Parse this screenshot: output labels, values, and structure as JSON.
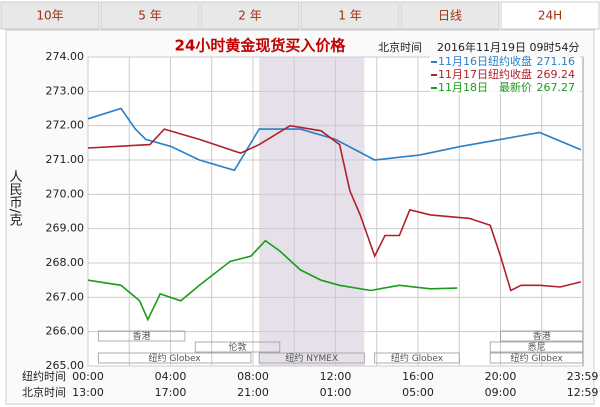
{
  "chart_data": {
    "type": "line",
    "tabs": [
      "10年",
      "5 年",
      "2 年",
      "1 年",
      "日线",
      "24H"
    ],
    "active_tab": 5,
    "title": "24小时黄金现货买入价格",
    "time_zone_label": "北京时间",
    "timestamp": "2016年11月19日 09时54分",
    "y_label": "人民币/克",
    "x_row_labels": [
      "纽约时间",
      "北京时间"
    ],
    "xlim": [
      0,
      24
    ],
    "xticks": [
      {
        "value": 0,
        "label": "00:00"
      },
      {
        "value": 4,
        "label": "04:00"
      },
      {
        "value": 8,
        "label": "08:00"
      },
      {
        "value": 12,
        "label": "12:00"
      },
      {
        "value": 16,
        "label": "16:00"
      },
      {
        "value": 20,
        "label": "20:00"
      },
      {
        "value": 23.98,
        "label": "23:59"
      }
    ],
    "x2_tick_labels": [
      "13:00",
      "17:00",
      "21:00",
      "01:00",
      "05:00",
      "09:00",
      "12:59"
    ],
    "x_minor_grid": [
      2,
      6,
      10,
      14,
      18,
      22
    ],
    "ylim": [
      265,
      274
    ],
    "yticks": [
      {
        "value": 265,
        "label": "265.00"
      },
      {
        "value": 266,
        "label": "266.00"
      },
      {
        "value": 267,
        "label": "267.00"
      },
      {
        "value": 268,
        "label": "268.00"
      },
      {
        "value": 269,
        "label": "269.00"
      },
      {
        "value": 270,
        "label": "270.00"
      },
      {
        "value": 271,
        "label": "271.00"
      },
      {
        "value": 272,
        "label": "272.00"
      },
      {
        "value": 273,
        "label": "273.00"
      },
      {
        "value": 274,
        "label": "274.00"
      }
    ],
    "grid": true,
    "markets": [
      {
        "label": "香港",
        "start": 0.5,
        "end": 4.7
      },
      {
        "label": "伦敦",
        "start": 5.2,
        "end": 9.3
      },
      {
        "label": "纽约 Globex",
        "start": 0.5,
        "end": 7.9
      },
      {
        "label": "纽约 NYMEX",
        "start": 8.3,
        "end": 13.4
      },
      {
        "label": "纽约 Globex",
        "start": 13.9,
        "end": 18.0
      },
      {
        "label": "香港",
        "start": 20.0,
        "end": 24
      },
      {
        "label": "悉尼",
        "start": 19.5,
        "end": 24
      },
      {
        "label": "纽约 Globex",
        "start": 19.5,
        "end": 24
      }
    ],
    "series": [
      {
        "name": "11月16日",
        "legend_label": "纽约收盘",
        "last_value": 271.16,
        "color": "#2a7fc9",
        "x": [
          0,
          1.6,
          2.3,
          2.8,
          4.0,
          5.4,
          7.1,
          8.3,
          10.3,
          12.0,
          13.9,
          16.1,
          18.1,
          20.0,
          21.9,
          23.9
        ],
        "values": [
          272.2,
          272.5,
          271.9,
          271.6,
          271.4,
          271.0,
          270.7,
          271.9,
          271.9,
          271.6,
          271.0,
          271.15,
          271.4,
          271.6,
          271.8,
          271.3
        ]
      },
      {
        "name": "11月17日",
        "legend_label": "纽约收盘",
        "last_value": 269.24,
        "color": "#b0202a",
        "x": [
          0,
          3.0,
          3.7,
          5.4,
          7.4,
          8.3,
          9.8,
          11.3,
          12.2,
          12.7,
          13.2,
          13.9,
          14.4,
          15.1,
          15.6,
          16.6,
          18.5,
          19.5,
          20.0,
          20.5,
          21.0,
          21.9,
          22.9,
          23.9
        ],
        "values": [
          271.35,
          271.45,
          271.9,
          271.6,
          271.2,
          271.45,
          272.0,
          271.85,
          271.45,
          270.1,
          269.4,
          268.2,
          268.8,
          268.8,
          269.55,
          269.4,
          269.3,
          269.1,
          268.2,
          267.2,
          267.35,
          267.35,
          267.3,
          267.45
        ]
      },
      {
        "name": "11月18日",
        "legend_label": "最新价",
        "last_value": 267.27,
        "color": "#1a9c1a",
        "x": [
          0,
          1.6,
          2.5,
          2.9,
          3.5,
          4.5,
          5.4,
          6.9,
          7.9,
          8.6,
          9.3,
          10.3,
          11.3,
          12.2,
          13.7,
          15.1,
          16.6,
          17.9
        ],
        "values": [
          267.5,
          267.35,
          266.9,
          266.35,
          267.1,
          266.9,
          267.35,
          268.05,
          268.2,
          268.65,
          268.35,
          267.8,
          267.5,
          267.35,
          267.2,
          267.35,
          267.25,
          267.27
        ]
      }
    ]
  }
}
